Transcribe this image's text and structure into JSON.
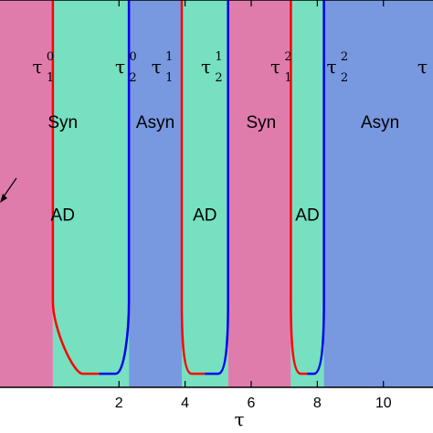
{
  "chart_data": {
    "type": "area",
    "title": "",
    "xlabel": "τ",
    "ylabel": "",
    "xlim": [
      -1.6,
      11.5
    ],
    "ylim": [
      0,
      1
    ],
    "x_ticks": [
      2,
      4,
      6,
      8,
      10
    ],
    "grid": false,
    "legend": "none",
    "colors": {
      "syn": "#e07cac",
      "ad": "#76e0c0",
      "asyn": "#7898e0",
      "boundary_lower": "#ff0000",
      "boundary_upper": "#0000ee",
      "axis": "#000000"
    },
    "regions": [
      {
        "kind": "syn",
        "label": "Syn",
        "x_from": -1.6,
        "x_to": 0.0
      },
      {
        "kind": "ad",
        "label": "AD",
        "x_from": 0.0,
        "x_to": 2.3
      },
      {
        "kind": "asyn",
        "label": "Asyn",
        "x_from": 2.3,
        "x_to": 3.9
      },
      {
        "kind": "ad",
        "label": "AD",
        "x_from": 3.9,
        "x_to": 5.3
      },
      {
        "kind": "syn",
        "label": "Syn",
        "x_from": 5.3,
        "x_to": 7.2
      },
      {
        "kind": "ad",
        "label": "AD",
        "x_from": 7.2,
        "x_to": 8.2
      },
      {
        "kind": "asyn",
        "label": "Asyn",
        "x_from": 8.2,
        "x_to": 11.5
      }
    ],
    "ad_lobes": [
      {
        "x_lower": 0.0,
        "x_upper": 2.3,
        "bottom_y": 0.035,
        "x_bottom_left": 0.9,
        "x_bottom_right": 1.9
      },
      {
        "x_lower": 3.9,
        "x_upper": 5.3,
        "bottom_y": 0.035,
        "x_bottom_left": 4.2,
        "x_bottom_right": 5.0
      },
      {
        "x_lower": 7.2,
        "x_upper": 8.2,
        "bottom_y": 0.035,
        "x_bottom_left": 7.5,
        "x_bottom_right": 7.9
      }
    ],
    "text_labels": [
      {
        "text": "Syn",
        "x": 0.3,
        "y": 0.67
      },
      {
        "text": "Asyn",
        "x": 3.1,
        "y": 0.67
      },
      {
        "text": "Syn",
        "x": 6.3,
        "y": 0.67
      },
      {
        "text": "Asyn",
        "x": 9.9,
        "y": 0.67
      },
      {
        "text": "AD",
        "x": 0.3,
        "y": 0.43
      },
      {
        "text": "AD",
        "x": 4.6,
        "y": 0.43
      },
      {
        "text": "AD",
        "x": 7.7,
        "y": 0.43
      }
    ],
    "boundary_labels": [
      {
        "base": "τ",
        "sub": "1",
        "sup": "0",
        "x": -0.3
      },
      {
        "base": "τ",
        "sub": "2",
        "sup": "0",
        "x": 2.2
      },
      {
        "base": "τ",
        "sub": "1",
        "sup": "1",
        "x": 3.3
      },
      {
        "base": "τ",
        "sub": "2",
        "sup": "1",
        "x": 4.8
      },
      {
        "base": "τ",
        "sub": "1",
        "sup": "2",
        "x": 6.9
      },
      {
        "base": "τ",
        "sub": "2",
        "sup": "2",
        "x": 8.6
      },
      {
        "base": "τ",
        "sub": "",
        "sup": "",
        "x": 11.35
      }
    ]
  }
}
